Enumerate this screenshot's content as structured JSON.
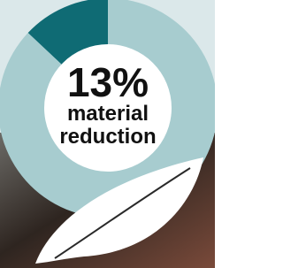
{
  "chart_data": {
    "type": "pie",
    "values": [
      13,
      87
    ],
    "value_labels": [
      "13%",
      null
    ],
    "colors": [
      "#0f6b74",
      "#a7cccf"
    ],
    "annotation": "material reduction"
  }
}
